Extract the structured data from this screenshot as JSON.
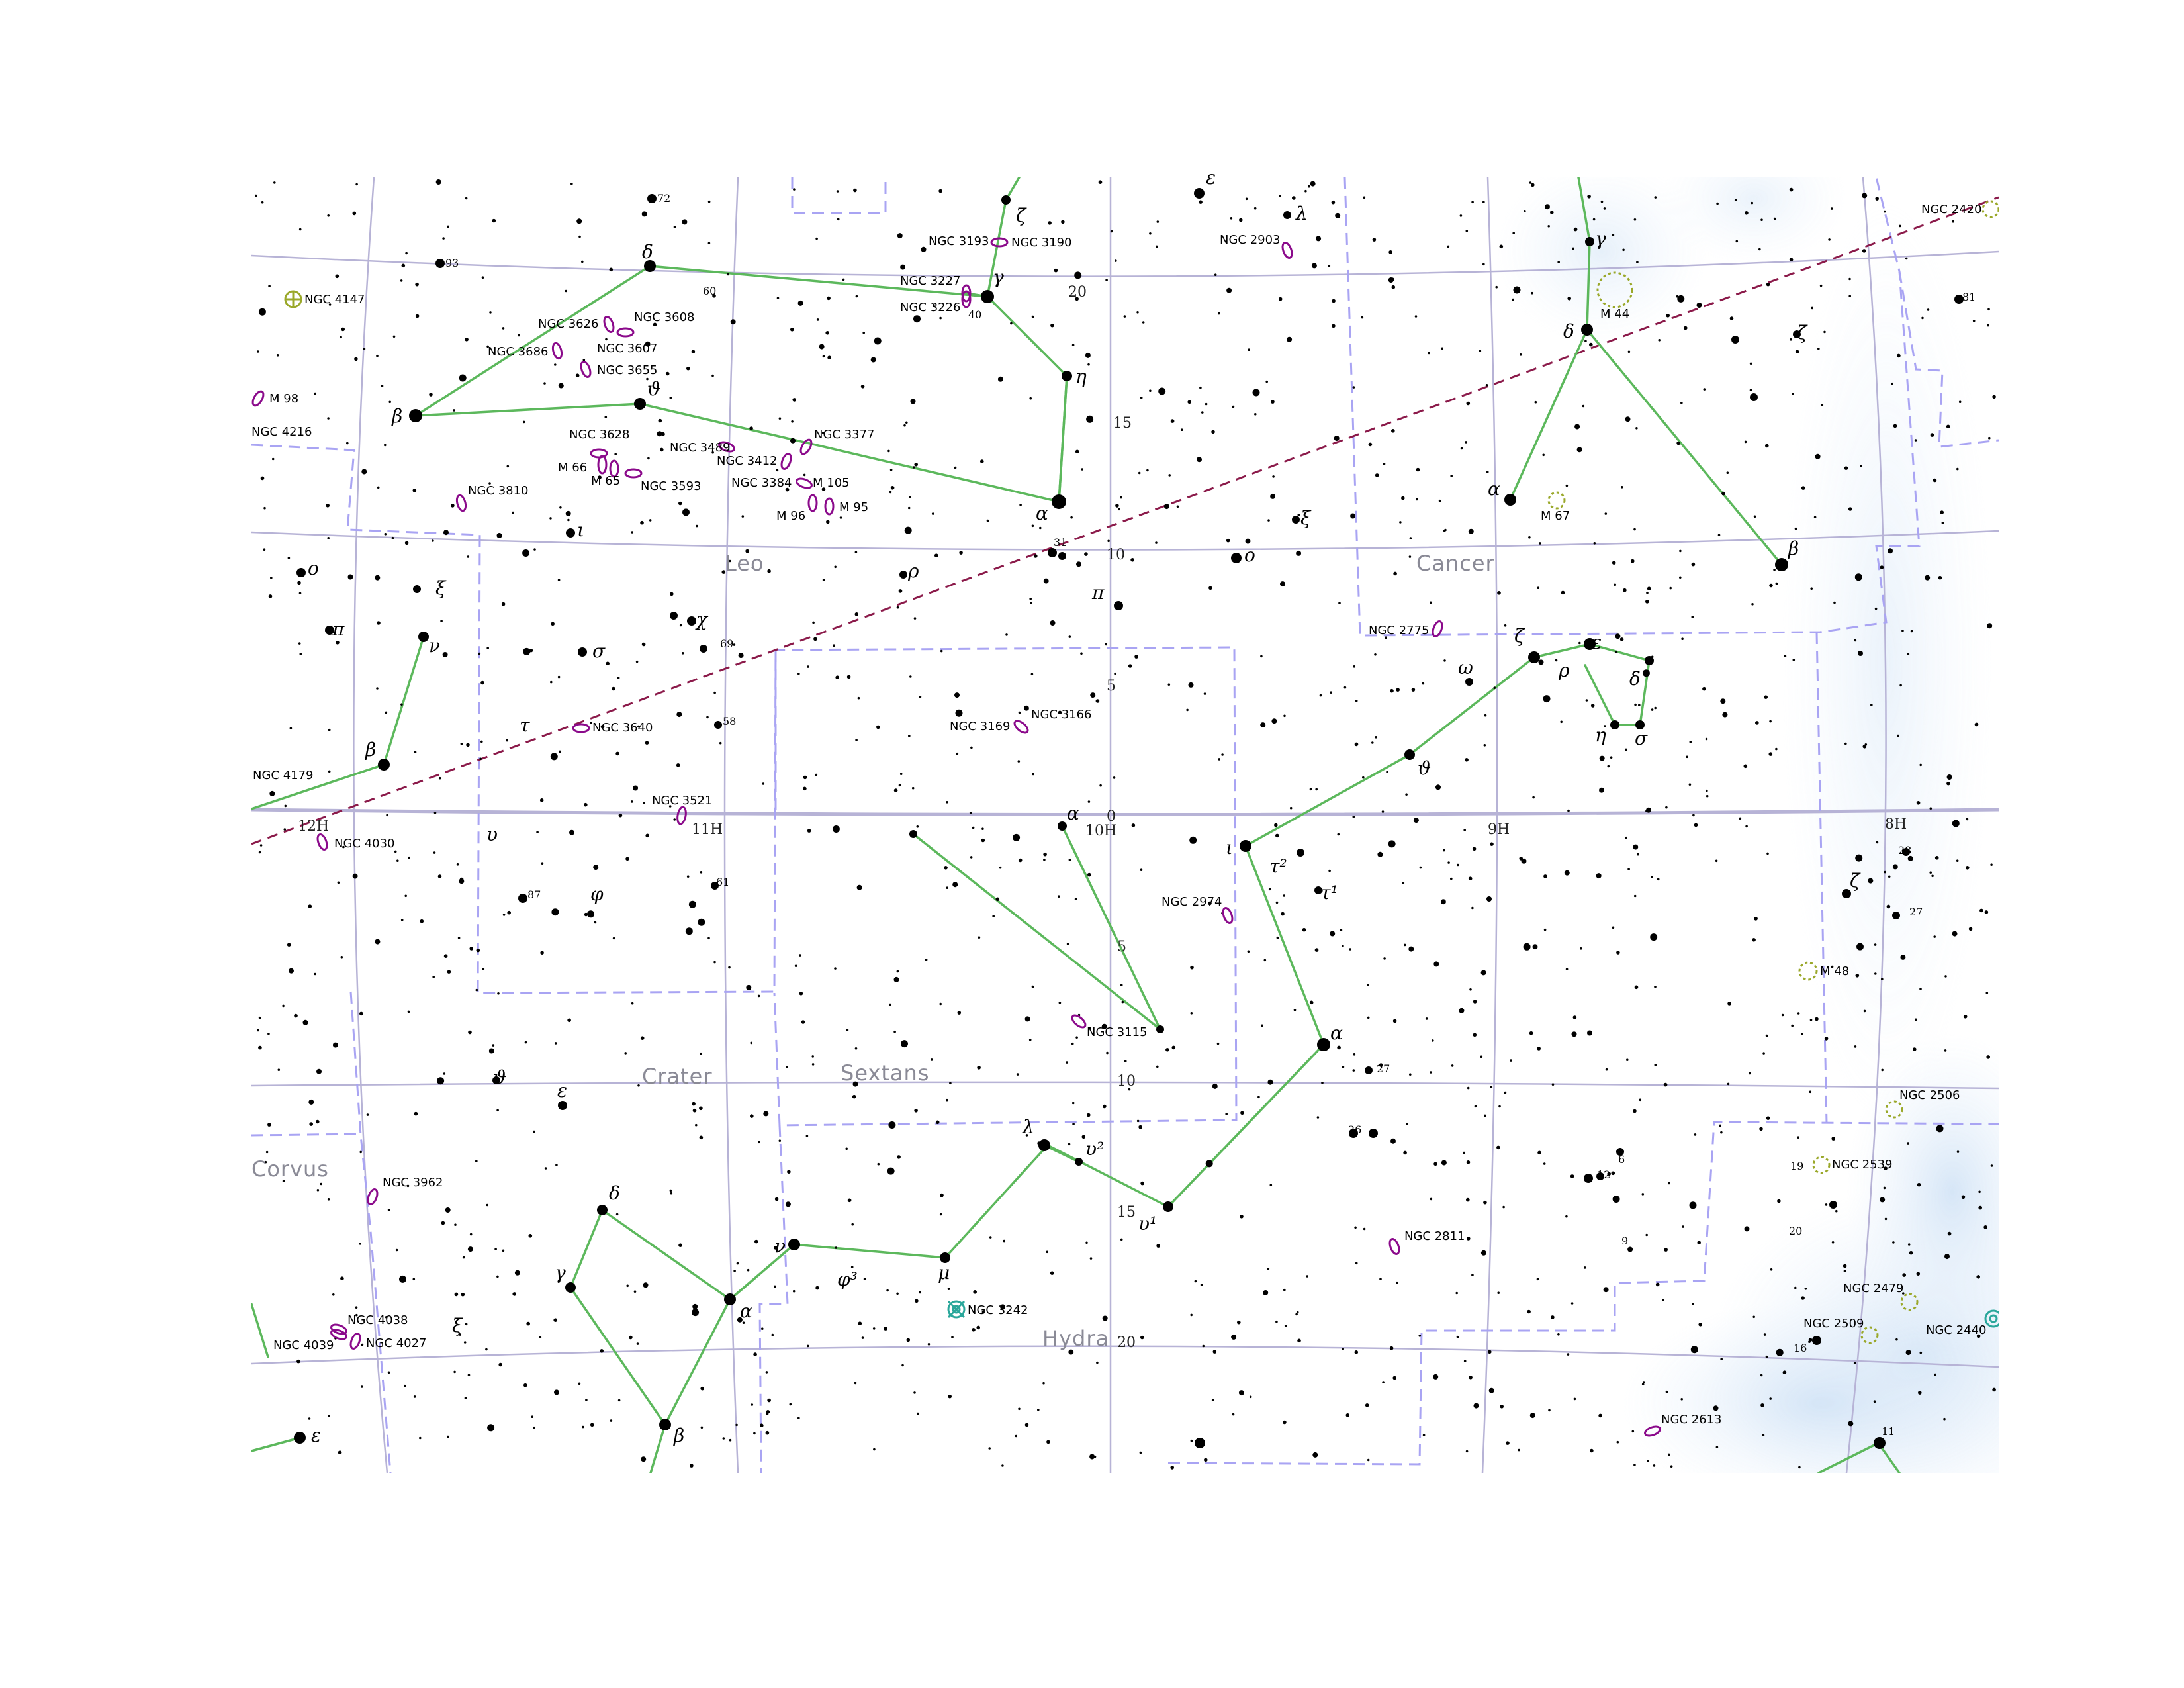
{
  "constellations": [
    "Leo",
    "Cancer",
    "Crater",
    "Sextans",
    "Corvus",
    "Hydra"
  ],
  "colors": {
    "constellation_lines": "#5cb85c",
    "boundaries": "#a9a4f3",
    "ecliptic": "#8b1a4a",
    "grid": "#b7b3d6",
    "galaxy": "#8b0a8b",
    "open_cluster": "#9aa82a",
    "nebula": "#2aa79b",
    "milky_way": "#d7e8f8"
  },
  "ra_labels": [
    "12H",
    "11H",
    "10H",
    "9H",
    "8H"
  ],
  "dec_labels": [
    "20",
    "15",
    "10",
    "5",
    "0",
    "5",
    "10",
    "15",
    "20"
  ],
  "greek_labels": {
    "leo_delta": "δ",
    "leo_beta": "β",
    "leo_theta": "ϑ",
    "leo_alpha": "α",
    "leo_eta": "η",
    "leo_gamma": "γ",
    "leo_zeta": "ζ",
    "leo_iota": "ι",
    "leo_rho": "ρ",
    "leo_chi": "χ",
    "leo_sigma": "σ",
    "leo_upsilon": "υ",
    "leo_tau": "τ",
    "leo_pi": "π",
    "leo_omicron": "o",
    "leo_xi": "ξ",
    "leo_lambda": "λ",
    "leo_epsilon": "ε",
    "vir_beta": "β",
    "vir_nu": "ν",
    "vir_pi": "π",
    "vir_omicron": "o",
    "vir_xi": "ξ",
    "cnc_gamma": "γ",
    "cnc_delta": "δ",
    "cnc_alpha": "α",
    "cnc_beta": "β",
    "cnc_zeta": "ζ",
    "cnc_zeta2": "ζ",
    "hya_zeta": "ζ",
    "hya_epsilon": "ε",
    "hya_rho": "ρ",
    "hya_delta": "δ",
    "hya_eta": "η",
    "hya_sigma": "σ",
    "hya_omega": "ω",
    "hya_theta": "ϑ",
    "hya_iota": "ι",
    "hya_tau2": "τ²",
    "hya_tau1": "τ¹",
    "hya_alpha": "α",
    "hya_lambda": "λ",
    "hya_upsilon2": "υ²",
    "hya_upsilon1": "υ¹",
    "hya_mu": "μ",
    "hya_nu": "ν",
    "hya_phi3": "φ³",
    "hya_xi": "ξ",
    "sex_alpha": "α",
    "crt_alpha": "α",
    "crt_beta": "β",
    "crt_gamma": "γ",
    "crt_delta": "δ",
    "crt_epsilon": "ε",
    "crt_theta": "ϑ",
    "crt_zeta": "ζ",
    "crt_phi": "φ",
    "crv_epsilon": "ε"
  },
  "star_numbers": [
    "72",
    "93",
    "60",
    "40",
    "81",
    "31",
    "69",
    "58",
    "61",
    "87",
    "27",
    "26",
    "6",
    "12",
    "9",
    "28",
    "27",
    "19",
    "20",
    "16",
    "11"
  ],
  "dso_labels": [
    "NGC 4147",
    "M 98",
    "NGC 4216",
    "NGC 3626",
    "NGC 3608",
    "NGC 3686",
    "NGC 3607",
    "NGC 3655",
    "NGC 3628",
    "M 66",
    "M 65",
    "NGC 3593",
    "NGC 3489",
    "NGC 3412",
    "NGC 3384",
    "M 105",
    "M 96",
    "M 95",
    "NGC 3377",
    "NGC 3810",
    "NGC 3193",
    "NGC 3190",
    "NGC 3227",
    "NGC 3226",
    "NGC 2903",
    "NGC 2420",
    "M 44",
    "M 67",
    "NGC 2775",
    "NGC 3169",
    "NGC 3166",
    "NGC 3640",
    "NGC 4179",
    "NGC 3521",
    "NGC 4030",
    "NGC 2974",
    "NGC 3115",
    "M 48",
    "NGC 2506",
    "NGC 2539",
    "NGC 3962",
    "NGC 2811",
    "NGC 4038",
    "NGC 4039",
    "NGC 4027",
    "NGC 3242",
    "NGC 2479",
    "NGC 2509",
    "NGC 2440",
    "NGC 2613"
  ]
}
